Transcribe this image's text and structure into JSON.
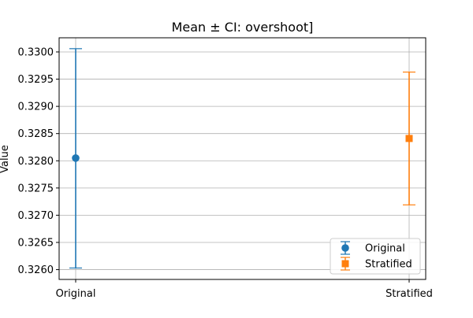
{
  "chart_data": {
    "type": "scatter",
    "title": "Mean ± CI: overshoot]",
    "xlabel": "",
    "ylabel": "Value",
    "categories": [
      "Original",
      "Stratified"
    ],
    "ylim": [
      0.32582,
      0.33026
    ],
    "yticks": [
      0.326,
      0.3265,
      0.327,
      0.3275,
      0.328,
      0.3285,
      0.329,
      0.3295,
      0.33
    ],
    "ytick_labels": [
      "0.3260",
      "0.3265",
      "0.3270",
      "0.3275",
      "0.3280",
      "0.3285",
      "0.3290",
      "0.3295",
      "0.3300"
    ],
    "grid": true,
    "legend_position": "bottom-right",
    "series": [
      {
        "name": "Original",
        "category": "Original",
        "mean": 0.32805,
        "lower": 0.32603,
        "upper": 0.33006,
        "marker": "circle",
        "color": "#1f77b4",
        "errorbar_color": "#1f77b4"
      },
      {
        "name": "Stratified",
        "category": "Stratified",
        "mean": 0.32841,
        "lower": 0.32719,
        "upper": 0.32963,
        "marker": "square",
        "color": "#ff7f0e",
        "errorbar_color": "#ff7f0e"
      }
    ]
  }
}
